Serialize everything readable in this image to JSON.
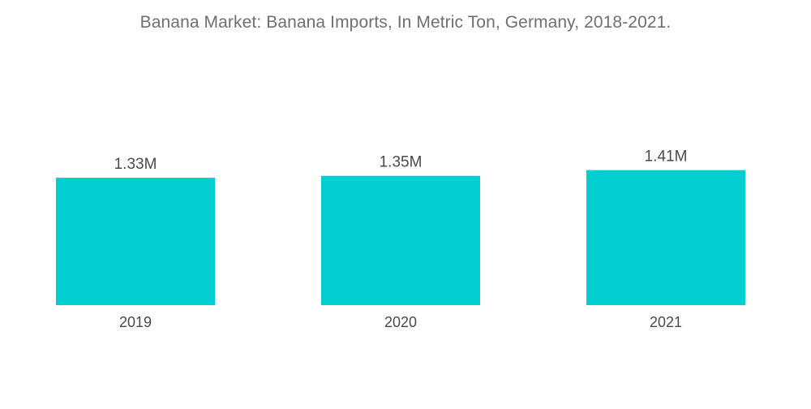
{
  "chart_data": {
    "type": "bar",
    "title": "Banana Market: Banana Imports, In Metric Ton, Germany, 2018-2021.",
    "categories": [
      "2019",
      "2020",
      "2021"
    ],
    "values": [
      1.33,
      1.35,
      1.41
    ],
    "value_labels": [
      "1.33M",
      "1.35M",
      "1.41M"
    ],
    "unit": "M",
    "ylim": [
      0,
      1.6
    ],
    "grid": false,
    "legend": "none",
    "bar_color": "#00CED1"
  }
}
